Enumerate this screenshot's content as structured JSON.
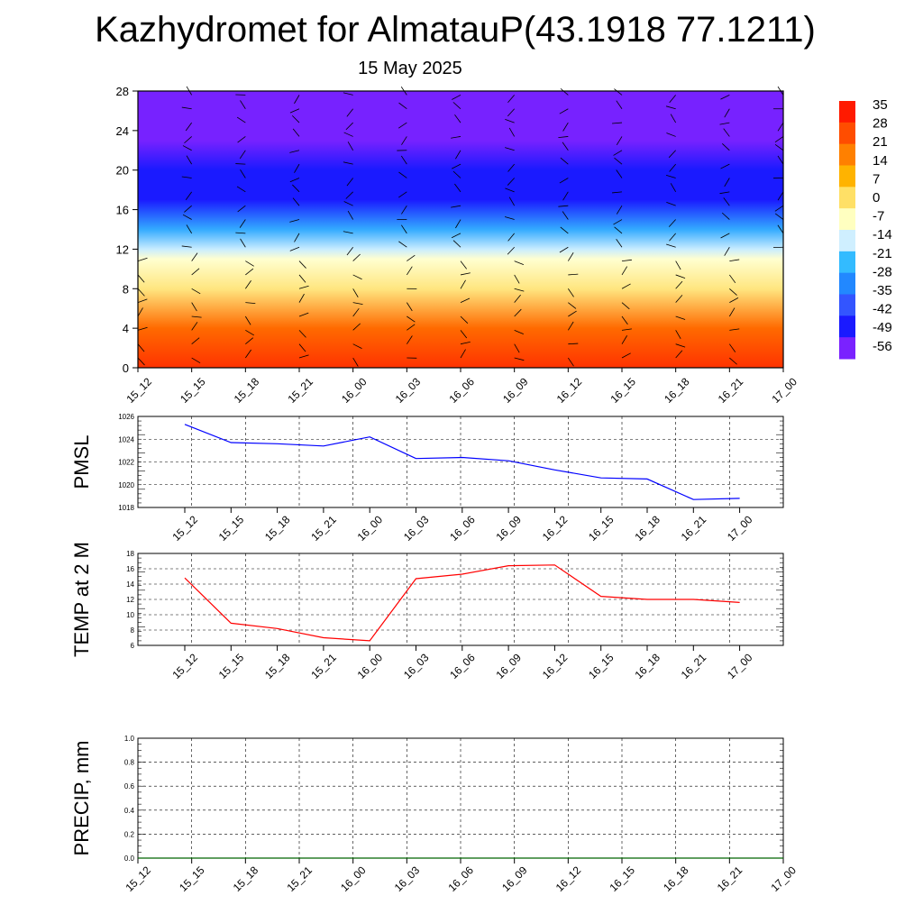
{
  "page": {
    "title": "Kazhydromet for AlmatauP(43.1918 77.1211)",
    "subtitle": "15 May 2025"
  },
  "chart_data": [
    {
      "type": "heatmap",
      "title": "",
      "xlabel": "",
      "ylabel": "",
      "x_tick_labels": [
        "15_12",
        "15_15",
        "15_18",
        "15_21",
        "16_00",
        "16_03",
        "16_06",
        "16_09",
        "16_12",
        "16_15",
        "16_18",
        "16_21",
        "17_00"
      ],
      "y_ticks": [
        0,
        4,
        8,
        12,
        16,
        20,
        24,
        28
      ],
      "ylim": [
        0,
        28
      ],
      "colorbar_labels": [
        "35",
        "28",
        "21",
        "14",
        "7",
        "0",
        "-7",
        "-14",
        "-21",
        "-28",
        "-35",
        "-42",
        "-49",
        "-56"
      ],
      "colormap": [
        "#ff1a00",
        "#ff4d00",
        "#ff8000",
        "#ffb300",
        "#ffe066",
        "#ffffc0",
        "#cfefff",
        "#33bbff",
        "#2288ff",
        "#3355ff",
        "#1a1aff",
        "#7a22ff"
      ],
      "overlay": "wind barbs",
      "temperature_profile": [
        {
          "level": 0,
          "value": 35
        },
        {
          "level": 4,
          "value": 21
        },
        {
          "level": 8,
          "value": 7
        },
        {
          "level": 11,
          "value": -7
        },
        {
          "level": 12,
          "value": -18
        },
        {
          "level": 14,
          "value": -35
        },
        {
          "level": 17,
          "value": -56
        },
        {
          "level": 20,
          "value": -56
        },
        {
          "level": 23,
          "value": -62
        }
      ]
    },
    {
      "type": "line",
      "ylabel": "PMSL",
      "x_tick_labels": [
        "15_12",
        "15_15",
        "15_18",
        "15_21",
        "16_00",
        "16_03",
        "16_06",
        "16_09",
        "16_12",
        "16_15",
        "16_18",
        "16_21",
        "17_00"
      ],
      "ylim": [
        1018,
        1026
      ],
      "y_ticks": [
        1018,
        1020,
        1022,
        1024,
        1026
      ],
      "color": "#0000ff",
      "series": [
        {
          "values": [
            1025.3,
            1023.7,
            1023.6,
            1023.4,
            1024.2,
            1022.3,
            1022.4,
            1022.1,
            1021.3,
            1020.6,
            1020.5,
            1018.7,
            1018.8
          ]
        }
      ]
    },
    {
      "type": "line",
      "ylabel": "TEMP at 2 M",
      "x_tick_labels": [
        "15_12",
        "15_15",
        "15_18",
        "15_21",
        "16_00",
        "16_03",
        "16_06",
        "16_09",
        "16_12",
        "16_15",
        "16_18",
        "16_21",
        "17_00"
      ],
      "ylim": [
        6,
        18
      ],
      "y_ticks": [
        6,
        8,
        10,
        12,
        14,
        16,
        18
      ],
      "color": "#ff0000",
      "series": [
        {
          "values": [
            14.8,
            8.9,
            8.2,
            7.0,
            6.6,
            14.7,
            15.3,
            16.4,
            16.5,
            12.4,
            12.0,
            12.0,
            11.6
          ]
        }
      ]
    },
    {
      "type": "line",
      "ylabel": "PRECIP, mm",
      "x_tick_labels": [
        "15_12",
        "15_15",
        "15_18",
        "15_21",
        "16_00",
        "16_03",
        "16_06",
        "16_09",
        "16_12",
        "16_15",
        "16_18",
        "16_21",
        "17_00"
      ],
      "ylim": [
        0,
        1
      ],
      "y_ticks": [
        0.0,
        0.2,
        0.4,
        0.6,
        0.8,
        1.0
      ],
      "y_tick_labels": [
        "0.0",
        "0.2",
        "0.4",
        "0.6",
        "0.8",
        "1.0"
      ],
      "color": "#006400",
      "series": [
        {
          "values": [
            0,
            0,
            0,
            0,
            0,
            0,
            0,
            0,
            0,
            0,
            0,
            0,
            0
          ]
        }
      ]
    }
  ]
}
